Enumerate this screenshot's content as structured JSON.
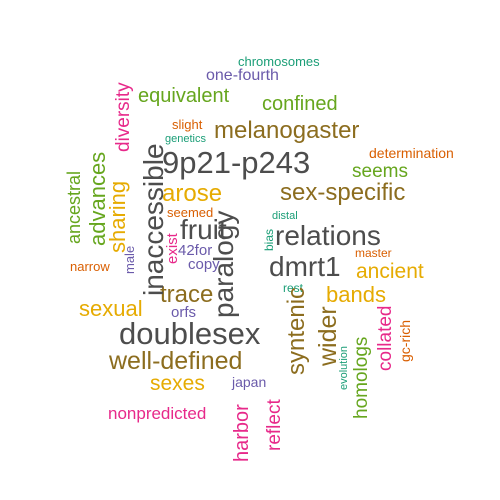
{
  "colors": {
    "dark_gray": "#4d4d4d",
    "brown": "#8c6d1f",
    "orange": "#d95f02",
    "purple": "#6a5aaa",
    "magenta": "#e7298a",
    "green": "#66a61e",
    "teal": "#1b9e77",
    "gold": "#e6ab02"
  },
  "words": [
    {
      "text": "chromosomes",
      "color": "teal",
      "vertical": false
    },
    {
      "text": "one-fourth",
      "color": "purple",
      "vertical": false
    },
    {
      "text": "equivalent",
      "color": "green",
      "vertical": false
    },
    {
      "text": "confined",
      "color": "green",
      "vertical": false
    },
    {
      "text": "slight",
      "color": "orange",
      "vertical": false
    },
    {
      "text": "genetics",
      "color": "teal",
      "vertical": false
    },
    {
      "text": "melanogaster",
      "color": "brown",
      "vertical": false
    },
    {
      "text": "determination",
      "color": "orange",
      "vertical": false
    },
    {
      "text": "9p21-p243",
      "color": "dark_gray",
      "vertical": false
    },
    {
      "text": "seems",
      "color": "green",
      "vertical": false
    },
    {
      "text": "arose",
      "color": "gold",
      "vertical": false
    },
    {
      "text": "sex-specific",
      "color": "brown",
      "vertical": false
    },
    {
      "text": "seemed",
      "color": "orange",
      "vertical": false
    },
    {
      "text": "distal",
      "color": "teal",
      "vertical": false
    },
    {
      "text": "fruit",
      "color": "dark_gray",
      "vertical": false
    },
    {
      "text": "relations",
      "color": "dark_gray",
      "vertical": false
    },
    {
      "text": "42for",
      "color": "purple",
      "vertical": false
    },
    {
      "text": "master",
      "color": "orange",
      "vertical": false
    },
    {
      "text": "narrow",
      "color": "orange",
      "vertical": false
    },
    {
      "text": "copy",
      "color": "purple",
      "vertical": false
    },
    {
      "text": "dmrt1",
      "color": "dark_gray",
      "vertical": false
    },
    {
      "text": "ancient",
      "color": "gold",
      "vertical": false
    },
    {
      "text": "rest",
      "color": "teal",
      "vertical": false
    },
    {
      "text": "trace",
      "color": "brown",
      "vertical": false
    },
    {
      "text": "bands",
      "color": "gold",
      "vertical": false
    },
    {
      "text": "sexual",
      "color": "gold",
      "vertical": false
    },
    {
      "text": "orfs",
      "color": "purple",
      "vertical": false
    },
    {
      "text": "doublesex",
      "color": "dark_gray",
      "vertical": false
    },
    {
      "text": "well-defined",
      "color": "brown",
      "vertical": false
    },
    {
      "text": "sexes",
      "color": "gold",
      "vertical": false
    },
    {
      "text": "japan",
      "color": "purple",
      "vertical": false
    },
    {
      "text": "nonpredicted",
      "color": "magenta",
      "vertical": false
    },
    {
      "text": "diversity",
      "color": "magenta",
      "vertical": true
    },
    {
      "text": "ancestral",
      "color": "green",
      "vertical": true
    },
    {
      "text": "advances",
      "color": "green",
      "vertical": true
    },
    {
      "text": "sharing",
      "color": "gold",
      "vertical": true
    },
    {
      "text": "inaccessible",
      "color": "dark_gray",
      "vertical": true
    },
    {
      "text": "exist",
      "color": "magenta",
      "vertical": true
    },
    {
      "text": "male",
      "color": "purple",
      "vertical": true
    },
    {
      "text": "paralogy",
      "color": "dark_gray",
      "vertical": true
    },
    {
      "text": "bias",
      "color": "teal",
      "vertical": true
    },
    {
      "text": "syntenic",
      "color": "brown",
      "vertical": true
    },
    {
      "text": "wider",
      "color": "brown",
      "vertical": true
    },
    {
      "text": "evolution",
      "color": "teal",
      "vertical": true
    },
    {
      "text": "homologs",
      "color": "green",
      "vertical": true
    },
    {
      "text": "collated",
      "color": "magenta",
      "vertical": true
    },
    {
      "text": "gc-rich",
      "color": "orange",
      "vertical": true
    },
    {
      "text": "harbor",
      "color": "magenta",
      "vertical": true
    },
    {
      "text": "reflect",
      "color": "magenta",
      "vertical": true
    }
  ]
}
